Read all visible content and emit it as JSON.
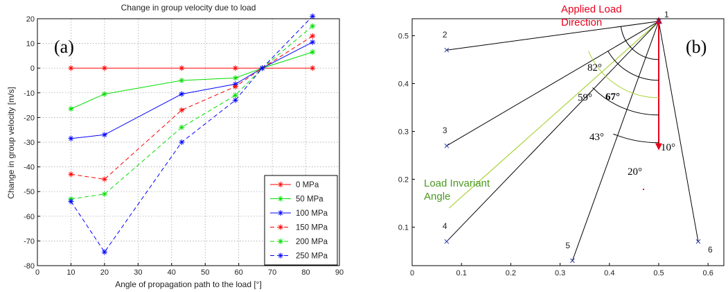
{
  "chart_data": [
    {
      "panel": "(a)",
      "type": "line",
      "title": "Change in group velocity due to load",
      "xlabel": "Angle of propagation path to the load [°]",
      "ylabel": "Change in group velocity [m/s]",
      "xlim": [
        0,
        90
      ],
      "ylim": [
        -80,
        20
      ],
      "xticks": [
        0,
        10,
        20,
        30,
        40,
        50,
        60,
        70,
        80,
        90
      ],
      "yticks": [
        -80,
        -70,
        -60,
        -50,
        -40,
        -30,
        -20,
        -10,
        0,
        10,
        20
      ],
      "grid": true,
      "legend_placement": "bottom-right",
      "x": [
        10,
        20,
        43,
        59,
        67,
        82
      ],
      "series": [
        {
          "name": "0 MPa",
          "color": "#ff0000",
          "dash": "solid",
          "values": [
            0,
            0,
            0,
            0,
            0,
            0
          ]
        },
        {
          "name": "50 MPa",
          "color": "#00dd00",
          "dash": "solid",
          "values": [
            -16.5,
            -10.5,
            -5,
            -4,
            0,
            6.5
          ]
        },
        {
          "name": "100 MPa",
          "color": "#0000ff",
          "dash": "solid",
          "values": [
            -28.5,
            -27,
            -10.5,
            -6.5,
            0,
            10.5
          ]
        },
        {
          "name": "150 MPa",
          "color": "#ff0000",
          "dash": "dashed",
          "values": [
            -43,
            -45,
            -17,
            -7.5,
            0,
            13
          ]
        },
        {
          "name": "200 MPa",
          "color": "#00dd00",
          "dash": "dashed",
          "values": [
            -53,
            -51,
            -24,
            -11,
            0,
            17
          ]
        },
        {
          "name": "250 MPa",
          "color": "#0000ff",
          "dash": "dashed",
          "values": [
            -54,
            -74.5,
            -30,
            -13,
            0,
            21
          ]
        }
      ]
    },
    {
      "panel": "(b)",
      "type": "diagram",
      "xlim": [
        0,
        0.65
      ],
      "ylim": [
        0,
        0.55
      ],
      "xticks": [
        0,
        0.1,
        0.2,
        0.3,
        0.4,
        0.5,
        0.6
      ],
      "yticks": [
        0.1,
        0.2,
        0.3,
        0.4,
        0.5
      ],
      "points": [
        {
          "label": "1",
          "x": 0.5,
          "y": 0.53
        },
        {
          "label": "2",
          "x": 0.07,
          "y": 0.47
        },
        {
          "label": "3",
          "x": 0.07,
          "y": 0.27
        },
        {
          "label": "4",
          "x": 0.07,
          "y": 0.07
        },
        {
          "label": "5",
          "x": 0.325,
          "y": 0.03
        },
        {
          "label": "6",
          "x": 0.58,
          "y": 0.07
        }
      ],
      "angles": [
        "82°",
        "59°",
        "67°",
        "43°",
        "20°",
        "10°"
      ],
      "load_label_line1": "Applied Load",
      "load_label_line2": "Direction",
      "invariant_label_line1": "Load Invariant",
      "invariant_label_line2": "Angle",
      "invariant_line": {
        "x1": 0.075,
        "y1": 0.14,
        "x2": 0.5,
        "y2": 0.53
      },
      "load_arrow": {
        "x": 0.5,
        "y_top": 0.535,
        "y_bottom": 0.265
      },
      "colors": {
        "load": "#e8001c",
        "invariant": "#a8d23a",
        "invariant_text": "#4a9a20"
      }
    }
  ]
}
